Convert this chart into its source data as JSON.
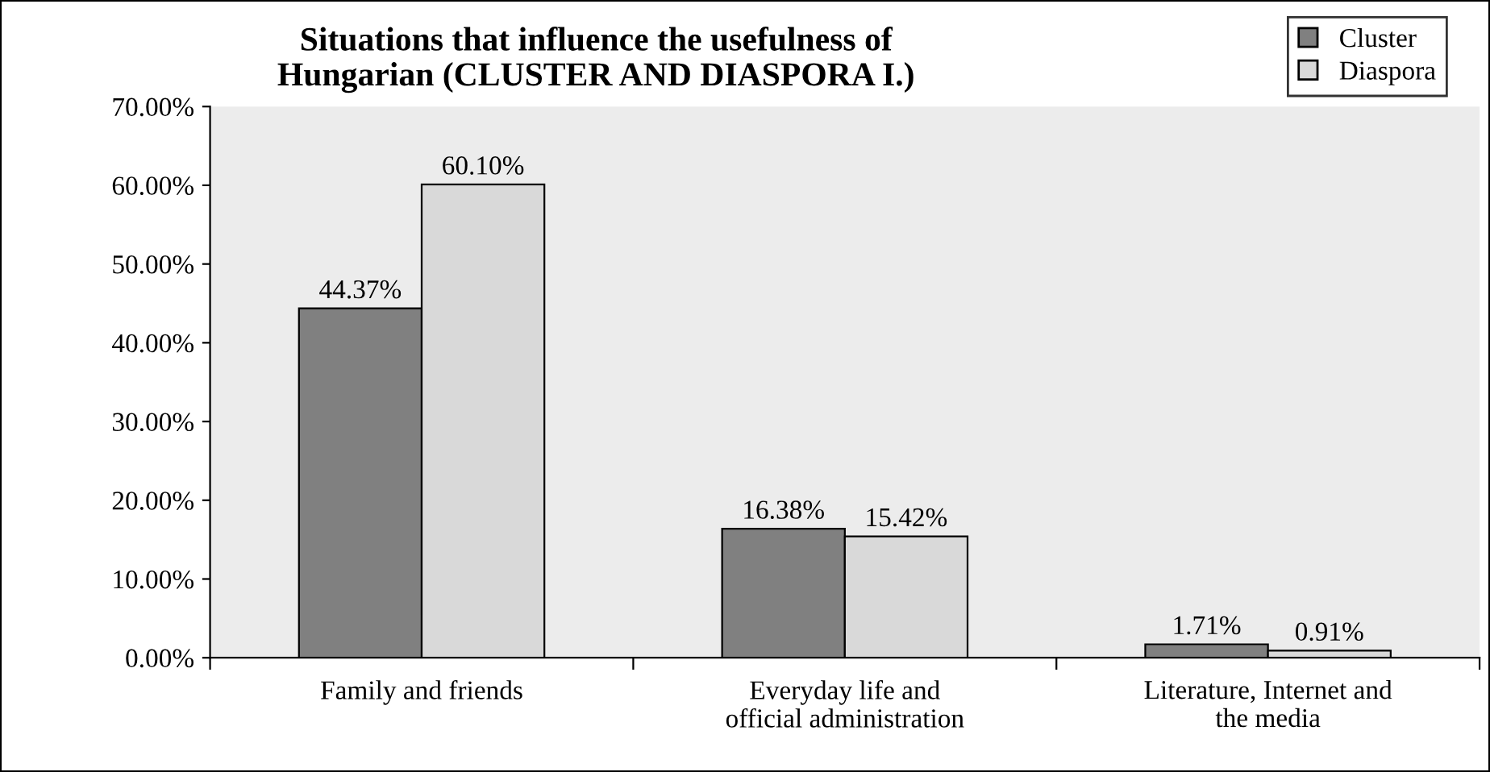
{
  "chart_data": {
    "type": "bar",
    "title": "Situations that influence the usefulness of\nHungarian (CLUSTER AND DIASPORA I.)",
    "categories": [
      "Family and friends",
      "Everyday life and\nofficial administration",
      "Literature, Internet and\nthe media"
    ],
    "series": [
      {
        "name": "Cluster",
        "color": "#808080",
        "values": [
          44.37,
          16.38,
          1.71
        ],
        "value_labels": [
          "44.37%",
          "16.38%",
          "1.71%"
        ]
      },
      {
        "name": "Diaspora",
        "color": "#d9d9d9",
        "values": [
          60.1,
          15.42,
          0.91
        ],
        "value_labels": [
          "60.10%",
          "15.42%",
          "0.91%"
        ]
      }
    ],
    "ylim": [
      0,
      70
    ],
    "yticks": [
      {
        "value": 0,
        "label": "0.00%"
      },
      {
        "value": 10,
        "label": "10.00%"
      },
      {
        "value": 20,
        "label": "20.00%"
      },
      {
        "value": 30,
        "label": "30.00%"
      },
      {
        "value": 40,
        "label": "40.00%"
      },
      {
        "value": 50,
        "label": "50.00%"
      },
      {
        "value": 60,
        "label": "60.00%"
      },
      {
        "value": 70,
        "label": "70.00%"
      }
    ],
    "grid": false,
    "legend": "top right"
  }
}
